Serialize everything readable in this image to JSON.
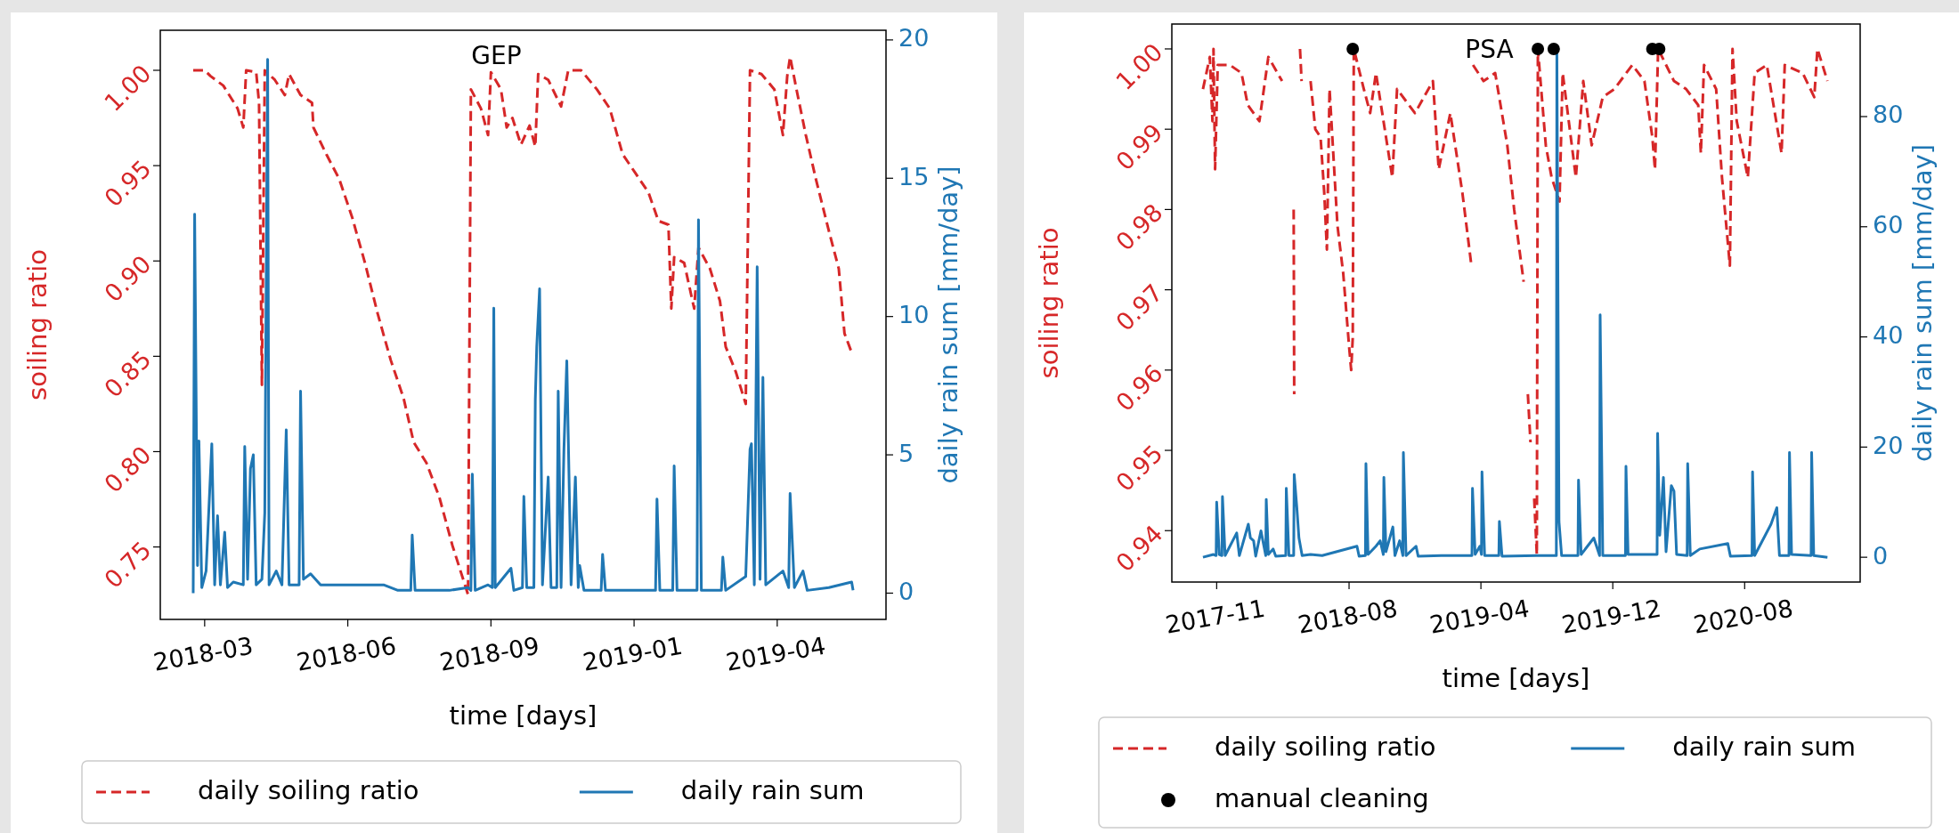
{
  "chart_data": [
    {
      "type": "line",
      "title": "GEP",
      "xlabel": "time [days]",
      "ylabel": "soiling ratio",
      "y2label": "daily rain sum [mm/day]",
      "legend": "bottom",
      "xlim": [
        "2018-02-07",
        "2019-06-29"
      ],
      "xticks": [
        {
          "value": "2018-03-10",
          "label": "2018-03"
        },
        {
          "value": "2018-06-18",
          "label": "2018-06"
        },
        {
          "value": "2018-09-26",
          "label": "2018-09"
        },
        {
          "value": "2019-01-04",
          "label": "2019-01"
        },
        {
          "value": "2019-04-14",
          "label": "2019-04"
        }
      ],
      "ylim": [
        0.712,
        1.021
      ],
      "yticks": [
        0.75,
        {
          "value": 0.8,
          "label": "0.80"
        },
        0.85,
        {
          "value": 0.9,
          "label": "0.90"
        },
        0.95,
        {
          "value": 1,
          "label": "1.00"
        }
      ],
      "y2lim": [
        -0.95,
        20.35
      ],
      "y2ticks": [
        0,
        5,
        10,
        15,
        20
      ],
      "series": [
        {
          "name": "daily soiling ratio",
          "color": "#d62728",
          "line_style": "dashed",
          "x": [
            "2018-03-02",
            "2018-03-10",
            "2018-03-14",
            "2018-03-23",
            "2018-04-02",
            "2018-04-06",
            "2018-04-08",
            "2018-04-15",
            "2018-04-17",
            "2018-04-19",
            "2018-04-21",
            "2018-04-28",
            "2018-05-05",
            "2018-05-08",
            "2018-05-16",
            "2018-05-24",
            "2018-05-25",
            "2018-06-03",
            "2018-06-12",
            "2018-06-21",
            "2018-06-30",
            "2018-07-09",
            "2018-07-18",
            "2018-07-27",
            "2018-08-03",
            "2018-08-12",
            "2018-08-21",
            "2018-08-30",
            "2018-09-10",
            "2018-09-12",
            "2018-09-19",
            "2018-09-24",
            "2018-09-26",
            "2018-10-03",
            "2018-10-07",
            "2018-10-11",
            "2018-10-17",
            "2018-10-23",
            "2018-10-27",
            "2018-10-29",
            "2018-11-05",
            "2018-11-14",
            "2018-11-19",
            "2018-11-28",
            "2018-12-09",
            "2018-12-18",
            "2018-12-27",
            "2019-01-05",
            "2019-01-14",
            "2019-01-21",
            "2019-01-28",
            "2019-01-30",
            "2019-02-01",
            "2019-02-08",
            "2019-02-15",
            "2019-02-18",
            "2019-02-26",
            "2019-03-05",
            "2019-03-09",
            "2019-03-16",
            "2019-03-23",
            "2019-03-26",
            "2019-04-03",
            "2019-04-12",
            "2019-04-18",
            "2019-04-21",
            "2019-04-23",
            "2019-04-28",
            "2019-05-04",
            "2019-05-11",
            "2019-05-20",
            "2019-05-27",
            "2019-05-31",
            "2019-06-05"
          ],
          "values": [
            1.0,
            1.0,
            0.997,
            0.992,
            0.98,
            0.97,
            1.0,
            0.999,
            0.983,
            0.835,
            1.0,
            0.995,
            0.987,
            0.998,
            0.987,
            0.983,
            0.97,
            0.956,
            0.943,
            0.923,
            0.899,
            0.872,
            0.848,
            0.828,
            0.805,
            0.794,
            0.776,
            0.751,
            0.725,
            0.99,
            0.98,
            0.966,
            0.999,
            0.99,
            0.97,
            0.975,
            0.961,
            0.971,
            0.96,
            0.998,
            0.995,
            0.981,
            1.0,
            1.0,
            0.99,
            0.98,
            0.956,
            0.946,
            0.936,
            0.921,
            0.919,
            0.875,
            0.902,
            0.899,
            0.875,
            0.907,
            0.896,
            0.879,
            0.855,
            0.842,
            0.825,
            1.0,
            0.998,
            0.99,
            0.966,
            0.997,
            1.007,
            0.988,
            0.966,
            0.943,
            0.916,
            0.896,
            0.862,
            0.852
          ]
        },
        {
          "name": "daily rain sum",
          "color": "#1f77b4",
          "axis": "y2",
          "x": [
            "2018-03-02",
            "2018-03-03",
            "2018-03-05",
            "2018-03-06",
            "2018-03-08",
            "2018-03-11",
            "2018-03-15",
            "2018-03-17",
            "2018-03-19",
            "2018-03-21",
            "2018-03-24",
            "2018-03-26",
            "2018-03-30",
            "2018-04-06",
            "2018-04-07",
            "2018-04-09",
            "2018-04-11",
            "2018-04-13",
            "2018-04-15",
            "2018-04-19",
            "2018-04-21",
            "2018-04-23",
            "2018-04-24",
            "2018-04-29",
            "2018-05-03",
            "2018-05-06",
            "2018-05-08",
            "2018-05-15",
            "2018-05-16",
            "2018-05-18",
            "2018-05-23",
            "2018-05-30",
            "2018-06-08",
            "2018-06-21",
            "2018-06-30",
            "2018-07-13",
            "2018-07-23",
            "2018-08-01",
            "2018-08-02",
            "2018-08-04",
            "2018-08-28",
            "2018-09-10",
            "2018-09-12",
            "2018-09-13",
            "2018-09-15",
            "2018-09-24",
            "2018-09-27",
            "2018-09-28",
            "2018-09-29",
            "2018-10-10",
            "2018-10-12",
            "2018-10-18",
            "2018-10-19",
            "2018-10-21",
            "2018-10-26",
            "2018-10-27",
            "2018-10-28",
            "2018-10-30",
            "2018-11-01",
            "2018-11-05",
            "2018-11-07",
            "2018-11-11",
            "2018-11-12",
            "2018-11-14",
            "2018-11-16",
            "2018-11-18",
            "2018-11-21",
            "2018-11-24",
            "2018-11-26",
            "2018-11-27",
            "2018-11-30",
            "2018-12-12",
            "2018-12-13",
            "2018-12-15",
            "2018-12-30",
            "2019-01-19",
            "2019-01-20",
            "2019-01-22",
            "2019-01-31",
            "2019-02-01",
            "2019-02-03",
            "2019-02-17",
            "2019-02-18",
            "2019-02-20",
            "2019-03-06",
            "2019-03-07",
            "2019-03-09",
            "2019-03-23",
            "2019-03-26",
            "2019-03-27",
            "2019-03-29",
            "2019-03-31",
            "2019-04-02",
            "2019-04-04",
            "2019-04-06",
            "2019-04-18",
            "2019-04-22",
            "2019-04-23",
            "2019-04-26",
            "2019-05-02",
            "2019-05-05",
            "2019-05-20",
            "2019-06-05",
            "2019-06-06"
          ],
          "values": [
            0,
            13.7,
            1.0,
            5.5,
            0.2,
            0.8,
            5.4,
            0.3,
            2.8,
            0.3,
            2.2,
            0.2,
            0.4,
            0.3,
            5.3,
            0.5,
            4.5,
            5.0,
            0.3,
            0.5,
            2.9,
            19.3,
            0.3,
            0.8,
            0.3,
            5.9,
            0.3,
            0.3,
            7.3,
            0.5,
            0.7,
            0.3,
            0.3,
            0.3,
            0.3,
            0.3,
            0.1,
            0.1,
            2.1,
            0.1,
            0.1,
            0.2,
            0.1,
            4.3,
            0.1,
            0.3,
            0.2,
            10.3,
            0.2,
            0.9,
            0.1,
            0.2,
            3.5,
            0.2,
            0.2,
            7.0,
            8.9,
            11.0,
            0.3,
            4.2,
            0.2,
            0.2,
            7.3,
            0.2,
            5.2,
            8.4,
            0.3,
            4.2,
            0.2,
            1.0,
            0.1,
            0.1,
            1.4,
            0.1,
            0.1,
            0.1,
            3.4,
            0.1,
            0.1,
            4.6,
            0.1,
            0.1,
            13.5,
            0.1,
            0.1,
            1.3,
            0.1,
            0.6,
            5.2,
            5.4,
            0.3,
            11.8,
            0.5,
            7.8,
            0.3,
            0.8,
            0.2,
            3.6,
            0.2,
            0.8,
            0.1,
            0.2,
            0.4,
            0.1
          ]
        }
      ]
    },
    {
      "type": "line",
      "title": "PSA",
      "xlabel": "time [days]",
      "ylabel": "soiling ratio",
      "y2label": "daily rain sum [mm/day]",
      "legend": "bottom",
      "xlim": [
        "2017-09-01",
        "2021-03-29"
      ],
      "xticks": [
        {
          "value": "2017-11-25",
          "label": "2017-11"
        },
        {
          "value": "2018-08-03",
          "label": "2018-08"
        },
        {
          "value": "2019-04-10",
          "label": "2019-04"
        },
        {
          "value": "2019-12-16",
          "label": "2019-12"
        },
        {
          "value": "2020-08-22",
          "label": "2020-08"
        }
      ],
      "ylim": [
        0.9336,
        1.0031
      ],
      "yticks": [
        0.94,
        0.95,
        0.96,
        0.97,
        0.98,
        0.99,
        {
          "value": 1,
          "label": "1.00"
        }
      ],
      "y2lim": [
        -4.5,
        96.8
      ],
      "y2ticks": [
        0,
        20,
        40,
        60,
        80
      ],
      "series": [
        {
          "name": "daily soiling ratio",
          "color": "#d62728",
          "line_style": "dashed",
          "x": [
            "2017-10-30",
            "2017-11-12",
            "2017-11-17",
            "2017-11-19",
            "2017-11-22",
            "2017-11-27",
            "2017-12-20",
            "2018-01-11",
            "2018-01-23",
            "2018-02-14",
            "2018-03-03",
            "2018-03-29",
            "2018-04-06",
            "2018-04-20",
            "2018-04-21",
            "2018-04-27",
            "2018-05-02",
            "2018-05-05",
            "2018-05-13",
            "2018-05-22",
            "2018-05-31",
            "2018-06-10",
            "2018-06-17",
            "2018-06-22",
            "2018-06-27",
            "2018-07-12",
            "2018-07-23",
            "2018-08-03",
            "2018-08-07",
            "2018-08-10",
            "2018-08-12",
            "2018-08-31",
            "2018-09-12",
            "2018-09-23",
            "2018-10-24",
            "2018-11-02",
            "2018-12-06",
            "2019-01-09",
            "2019-01-20",
            "2019-02-11",
            "2019-03-06",
            "2019-03-23",
            "2019-03-25",
            "2019-03-26",
            "2019-04-15",
            "2019-05-07",
            "2019-05-30",
            "2019-06-12",
            "2019-06-30",
            "2019-07-05",
            "2019-07-08",
            "2019-07-13",
            "2019-07-16",
            "2019-07-20",
            "2019-07-25",
            "2019-07-27",
            "2019-08-11",
            "2019-08-22",
            "2019-09-06",
            "2019-09-12",
            "2019-10-07",
            "2019-10-21",
            "2019-11-06",
            "2019-11-27",
            "2019-12-19",
            "2020-01-22",
            "2020-02-14",
            "2020-02-29",
            "2020-03-05",
            "2020-03-11",
            "2020-04-10",
            "2020-05-03",
            "2020-05-26",
            "2020-05-31",
            "2020-06-06",
            "2020-06-29",
            "2020-07-10",
            "2020-07-25",
            "2020-07-30",
            "2020-08-07",
            "2020-08-28",
            "2020-09-10",
            "2020-10-03",
            "2020-10-31",
            "2020-11-06",
            "2020-12-10",
            "2021-01-01",
            "2021-01-07",
            "2021-01-26"
          ],
          "values": [
            0.995,
            0.999,
            0.991,
            1.0,
            0.985,
            0.998,
            0.998,
            0.997,
            0.993,
            0.991,
            0.999,
            0.996,
            null,
            0.98,
            0.957,
            null,
            1.0,
            0.996,
            null,
            0.996,
            0.99,
            0.989,
            0.982,
            0.975,
            0.995,
            0.978,
            0.972,
            0.963,
            0.96,
            0.964,
            1.0,
            0.995,
            0.992,
            0.997,
            0.984,
            0.995,
            0.992,
            0.996,
            0.985,
            0.992,
            0.982,
            0.973,
            null,
            0.998,
            0.996,
            0.997,
            0.988,
            0.98,
            0.971,
            null,
            0.957,
            0.951,
            null,
            0.944,
            0.937,
            1.0,
            0.988,
            0.984,
            0.981,
            0.997,
            0.984,
            0.996,
            0.988,
            0.994,
            0.995,
            0.998,
            0.996,
            0.989,
            0.985,
            1.0,
            0.996,
            0.995,
            0.993,
            0.987,
            0.998,
            0.995,
            0.984,
            0.973,
            1.0,
            0.991,
            0.984,
            0.997,
            0.998,
            0.987,
            0.998,
            0.997,
            0.994,
            1.0,
            0.996
          ]
        },
        {
          "name": "daily rain sum",
          "color": "#1f77b4",
          "axis": "y2",
          "x": [
            "2017-10-30",
            "2017-11-19",
            "2017-11-24",
            "2017-11-25",
            "2017-11-30",
            "2017-12-05",
            "2017-12-06",
            "2017-12-11",
            "2018-01-02",
            "2018-01-07",
            "2018-01-24",
            "2018-01-28",
            "2018-02-03",
            "2018-02-07",
            "2018-02-17",
            "2018-02-26",
            "2018-02-27",
            "2018-03-03",
            "2018-03-12",
            "2018-03-17",
            "2018-04-05",
            "2018-04-06",
            "2018-04-11",
            "2018-04-20",
            "2018-04-21",
            "2018-04-26",
            "2018-04-30",
            "2018-05-06",
            "2018-05-22",
            "2018-06-13",
            "2018-08-18",
            "2018-08-22",
            "2018-09-03",
            "2018-09-04",
            "2018-09-08",
            "2018-09-23",
            "2018-10-01",
            "2018-10-07",
            "2018-10-08",
            "2018-10-12",
            "2018-10-25",
            "2018-10-29",
            "2018-11-07",
            "2018-11-13",
            "2018-11-14",
            "2018-11-19",
            "2018-12-08",
            "2018-12-12",
            "2019-01-25",
            "2019-03-24",
            "2019-03-25",
            "2019-03-30",
            "2019-04-08",
            "2019-04-11",
            "2019-04-12",
            "2019-04-17",
            "2019-05-14",
            "2019-05-15",
            "2019-05-20",
            "2019-07-25",
            "2019-08-31",
            "2019-09-01",
            "2019-09-05",
            "2019-09-10",
            "2019-10-11",
            "2019-10-12",
            "2019-10-17",
            "2019-11-10",
            "2019-11-21",
            "2019-11-22",
            "2019-11-27",
            "2020-01-09",
            "2020-01-10",
            "2020-01-14",
            "2020-02-25",
            "2020-03-09",
            "2020-03-10",
            "2020-03-14",
            "2020-03-21",
            "2020-03-26",
            "2020-04-05",
            "2020-04-10",
            "2020-04-15",
            "2020-05-05",
            "2020-05-06",
            "2020-05-11",
            "2020-05-29",
            "2020-07-21",
            "2020-07-26",
            "2020-09-05",
            "2020-09-06",
            "2020-09-10",
            "2020-10-11",
            "2020-10-22",
            "2020-10-27",
            "2020-11-14",
            "2020-11-15",
            "2020-11-19",
            "2020-12-26",
            "2020-12-27",
            "2020-12-31",
            "2021-01-26"
          ],
          "values": [
            0,
            0.5,
            0.3,
            10.0,
            0.5,
            0.3,
            11.0,
            0.3,
            4.4,
            0.3,
            6.0,
            3.5,
            3.0,
            0.2,
            4.8,
            0.3,
            10.5,
            0.5,
            1.5,
            0.2,
            0.3,
            12.5,
            0.3,
            0.3,
            15.0,
            9.0,
            3.5,
            0.3,
            0.5,
            0.3,
            2.0,
            0.2,
            0.3,
            17.0,
            0.5,
            2.0,
            3.0,
            0.5,
            14.5,
            1.0,
            5.5,
            0.3,
            3.0,
            0.3,
            19.0,
            0.3,
            2.0,
            0.2,
            0.3,
            0.3,
            12.5,
            0.5,
            2.0,
            0.5,
            15.5,
            0.3,
            0.3,
            6.5,
            0.2,
            0.3,
            0.3,
            92.0,
            6.5,
            0.3,
            0.3,
            14.0,
            0.5,
            3.5,
            0.3,
            44.0,
            0.3,
            0.3,
            16.5,
            0.5,
            0.5,
            0.5,
            22.5,
            4.0,
            14.5,
            1.0,
            13.0,
            12.0,
            0.5,
            0.3,
            17.0,
            0.3,
            1.5,
            2.5,
            0.2,
            0.3,
            15.5,
            0.3,
            6.0,
            9.0,
            0.3,
            0.3,
            19.0,
            0.5,
            0.3,
            19.0,
            0.3,
            0
          ]
        },
        {
          "type": "scatter",
          "name": "manual cleaning",
          "color": "#000000",
          "marker": "circle",
          "x": [
            "2018-08-10",
            "2019-07-27",
            "2019-08-26",
            "2020-02-29",
            "2020-03-13"
          ],
          "values": [
            1,
            1,
            1,
            1,
            1
          ]
        }
      ]
    }
  ]
}
